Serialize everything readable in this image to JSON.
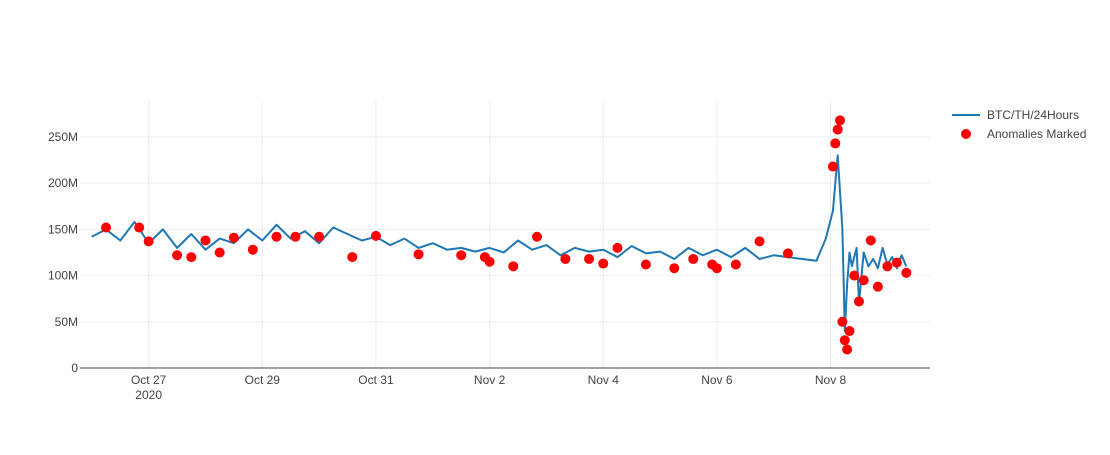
{
  "chart_data": {
    "type": "line",
    "x_axis": {
      "type": "date",
      "range": [
        "2020-10-25T19:00:00",
        "2020-11-09T18:00:00"
      ],
      "ticks": [
        {
          "date": "2020-10-27",
          "label": "Oct 27",
          "sublabel": "2020"
        },
        {
          "date": "2020-10-29",
          "label": "Oct 29",
          "sublabel": ""
        },
        {
          "date": "2020-10-31",
          "label": "Oct 31",
          "sublabel": ""
        },
        {
          "date": "2020-11-02",
          "label": "Nov 2",
          "sublabel": ""
        },
        {
          "date": "2020-11-04",
          "label": "Nov 4",
          "sublabel": ""
        },
        {
          "date": "2020-11-06",
          "label": "Nov 6",
          "sublabel": ""
        },
        {
          "date": "2020-11-08",
          "label": "Nov 8",
          "sublabel": ""
        }
      ]
    },
    "y_axis": {
      "range": [
        0,
        290
      ],
      "unit": "M",
      "ticks": [
        {
          "value": 0,
          "label": "0"
        },
        {
          "value": 50,
          "label": "50M"
        },
        {
          "value": 100,
          "label": "100M"
        },
        {
          "value": 150,
          "label": "150M"
        },
        {
          "value": 200,
          "label": "200M"
        },
        {
          "value": 250,
          "label": "250M"
        }
      ]
    },
    "grid": true,
    "legend_position": "top-right",
    "series": [
      {
        "name": "BTC/TH/24Hours",
        "mode": "lines",
        "color": "#1f77b4",
        "x": [
          "2020-10-26T00:00",
          "2020-10-26T06:00",
          "2020-10-26T12:00",
          "2020-10-26T18:00",
          "2020-10-27T00:00",
          "2020-10-27T06:00",
          "2020-10-27T12:00",
          "2020-10-27T18:00",
          "2020-10-28T00:00",
          "2020-10-28T06:00",
          "2020-10-28T12:00",
          "2020-10-28T18:00",
          "2020-10-29T00:00",
          "2020-10-29T06:00",
          "2020-10-29T12:00",
          "2020-10-29T18:00",
          "2020-10-30T00:00",
          "2020-10-30T06:00",
          "2020-10-30T12:00",
          "2020-10-30T18:00",
          "2020-10-31T00:00",
          "2020-10-31T06:00",
          "2020-10-31T12:00",
          "2020-10-31T18:00",
          "2020-11-01T00:00",
          "2020-11-01T06:00",
          "2020-11-01T12:00",
          "2020-11-01T18:00",
          "2020-11-02T00:00",
          "2020-11-02T06:00",
          "2020-11-02T12:00",
          "2020-11-02T18:00",
          "2020-11-03T00:00",
          "2020-11-03T06:00",
          "2020-11-03T12:00",
          "2020-11-03T18:00",
          "2020-11-04T00:00",
          "2020-11-04T06:00",
          "2020-11-04T12:00",
          "2020-11-04T18:00",
          "2020-11-05T00:00",
          "2020-11-05T06:00",
          "2020-11-05T12:00",
          "2020-11-05T18:00",
          "2020-11-06T00:00",
          "2020-11-06T06:00",
          "2020-11-06T12:00",
          "2020-11-06T18:00",
          "2020-11-07T00:00",
          "2020-11-07T06:00",
          "2020-11-07T12:00",
          "2020-11-07T18:00",
          "2020-11-07T22:00",
          "2020-11-08T01:00",
          "2020-11-08T03:00",
          "2020-11-08T05:00",
          "2020-11-08T06:00",
          "2020-11-08T07:00",
          "2020-11-08T08:00",
          "2020-11-08T09:00",
          "2020-11-08T10:00",
          "2020-11-08T11:00",
          "2020-11-08T12:00",
          "2020-11-08T14:00",
          "2020-11-08T16:00",
          "2020-11-08T18:00",
          "2020-11-08T20:00",
          "2020-11-08T22:00",
          "2020-11-09T00:00",
          "2020-11-09T02:00",
          "2020-11-09T04:00",
          "2020-11-09T06:00",
          "2020-11-09T08:00"
        ],
        "y": [
          142,
          150,
          138,
          158,
          135,
          150,
          130,
          145,
          128,
          140,
          135,
          150,
          138,
          155,
          140,
          148,
          135,
          152,
          145,
          138,
          142,
          133,
          140,
          130,
          135,
          128,
          130,
          126,
          130,
          125,
          138,
          128,
          133,
          122,
          130,
          126,
          128,
          120,
          132,
          124,
          126,
          118,
          130,
          122,
          128,
          120,
          130,
          118,
          122,
          120,
          118,
          116,
          140,
          170,
          230,
          150,
          40,
          90,
          125,
          110,
          120,
          130,
          70,
          125,
          110,
          118,
          108,
          130,
          112,
          120,
          108,
          122,
          110
        ]
      },
      {
        "name": "Anomalies Marked",
        "mode": "markers",
        "color": "#ff0000",
        "x": [
          "2020-10-26T06:00",
          "2020-10-26T20:00",
          "2020-10-27T00:00",
          "2020-10-27T12:00",
          "2020-10-27T18:00",
          "2020-10-28T00:00",
          "2020-10-28T06:00",
          "2020-10-28T12:00",
          "2020-10-28T20:00",
          "2020-10-29T06:00",
          "2020-10-29T14:00",
          "2020-10-30T00:00",
          "2020-10-30T14:00",
          "2020-10-31T00:00",
          "2020-10-31T18:00",
          "2020-11-01T12:00",
          "2020-11-01T22:00",
          "2020-11-02T00:00",
          "2020-11-02T10:00",
          "2020-11-02T20:00",
          "2020-11-03T08:00",
          "2020-11-03T18:00",
          "2020-11-04T00:00",
          "2020-11-04T06:00",
          "2020-11-04T18:00",
          "2020-11-05T06:00",
          "2020-11-05T14:00",
          "2020-11-05T22:00",
          "2020-11-06T00:00",
          "2020-11-06T08:00",
          "2020-11-06T18:00",
          "2020-11-07T06:00",
          "2020-11-08T01:00",
          "2020-11-08T02:00",
          "2020-11-08T03:00",
          "2020-11-08T04:00",
          "2020-11-08T05:00",
          "2020-11-08T06:00",
          "2020-11-08T07:00",
          "2020-11-08T08:00",
          "2020-11-08T10:00",
          "2020-11-08T12:00",
          "2020-11-08T14:00",
          "2020-11-08T17:00",
          "2020-11-08T20:00",
          "2020-11-09T00:00",
          "2020-11-09T04:00",
          "2020-11-09T08:00"
        ],
        "y": [
          152,
          152,
          137,
          122,
          120,
          138,
          125,
          141,
          128,
          142,
          142,
          142,
          120,
          143,
          123,
          122,
          120,
          115,
          110,
          142,
          118,
          118,
          113,
          130,
          112,
          108,
          118,
          112,
          108,
          112,
          137,
          124,
          218,
          243,
          258,
          268,
          50,
          30,
          20,
          40,
          100,
          72,
          95,
          138,
          88,
          110,
          114,
          103
        ]
      }
    ]
  }
}
